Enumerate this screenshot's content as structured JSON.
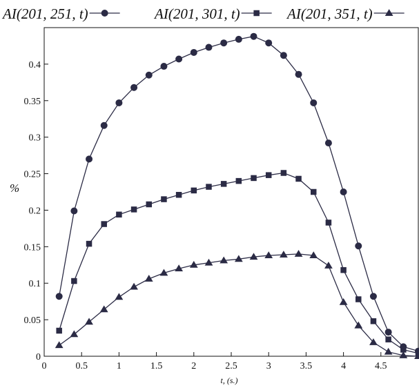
{
  "chart_data": {
    "type": "line",
    "title": "",
    "xlabel": "t, (s.)",
    "ylabel": "%",
    "xlim": [
      0,
      5.0
    ],
    "ylim": [
      0,
      0.45
    ],
    "x_ticks": [
      0,
      0.5,
      1,
      1.5,
      2,
      2.5,
      3,
      3.5,
      4,
      4.5
    ],
    "x_tick_labels": [
      "0",
      "0.5",
      "1",
      "1.5",
      "2",
      "2.5",
      "3",
      "3.5",
      "4",
      "4.5"
    ],
    "y_ticks": [
      0,
      0.05,
      0.1,
      0.15,
      0.2,
      0.25,
      0.3,
      0.35,
      0.4
    ],
    "y_tick_labels": [
      "0",
      "0.05",
      "0.1",
      "0.15",
      "0.2",
      "0.25",
      "0.3",
      "0.35",
      "0.4"
    ],
    "grid": false,
    "legend_position": "top",
    "series": [
      {
        "name": "AI(201, 251, t)",
        "marker": "circle",
        "color": "#2b2b45",
        "x": [
          0.2,
          0.4,
          0.6,
          0.8,
          1.0,
          1.2,
          1.4,
          1.6,
          1.8,
          2.0,
          2.2,
          2.4,
          2.6,
          2.8,
          3.0,
          3.2,
          3.4,
          3.6,
          3.8,
          4.0,
          4.2,
          4.4,
          4.6,
          4.8,
          5.0
        ],
        "values": [
          0.082,
          0.199,
          0.27,
          0.316,
          0.347,
          0.368,
          0.385,
          0.397,
          0.407,
          0.416,
          0.423,
          0.429,
          0.434,
          0.438,
          0.429,
          0.412,
          0.386,
          0.347,
          0.292,
          0.225,
          0.151,
          0.082,
          0.033,
          0.013,
          0.007
        ]
      },
      {
        "name": "AI(201, 301, t)",
        "marker": "square",
        "color": "#2b2b45",
        "x": [
          0.2,
          0.4,
          0.6,
          0.8,
          1.0,
          1.2,
          1.4,
          1.6,
          1.8,
          2.0,
          2.2,
          2.4,
          2.6,
          2.8,
          3.0,
          3.2,
          3.4,
          3.6,
          3.8,
          4.0,
          4.2,
          4.4,
          4.6,
          4.8,
          5.0
        ],
        "values": [
          0.035,
          0.103,
          0.154,
          0.181,
          0.194,
          0.201,
          0.208,
          0.215,
          0.221,
          0.227,
          0.232,
          0.236,
          0.24,
          0.244,
          0.248,
          0.251,
          0.243,
          0.225,
          0.183,
          0.118,
          0.078,
          0.048,
          0.023,
          0.009,
          0.004
        ]
      },
      {
        "name": "AI(201, 351, t)",
        "marker": "triangle",
        "color": "#2b2b45",
        "x": [
          0.2,
          0.4,
          0.6,
          0.8,
          1.0,
          1.2,
          1.4,
          1.6,
          1.8,
          2.0,
          2.2,
          2.4,
          2.6,
          2.8,
          3.0,
          3.2,
          3.4,
          3.6,
          3.8,
          4.0,
          4.2,
          4.4,
          4.6,
          4.8,
          5.0
        ],
        "values": [
          0.015,
          0.03,
          0.047,
          0.064,
          0.081,
          0.095,
          0.106,
          0.114,
          0.12,
          0.125,
          0.128,
          0.131,
          0.133,
          0.136,
          0.138,
          0.139,
          0.14,
          0.138,
          0.124,
          0.074,
          0.042,
          0.019,
          0.006,
          0.001,
          0.0
        ]
      }
    ]
  }
}
